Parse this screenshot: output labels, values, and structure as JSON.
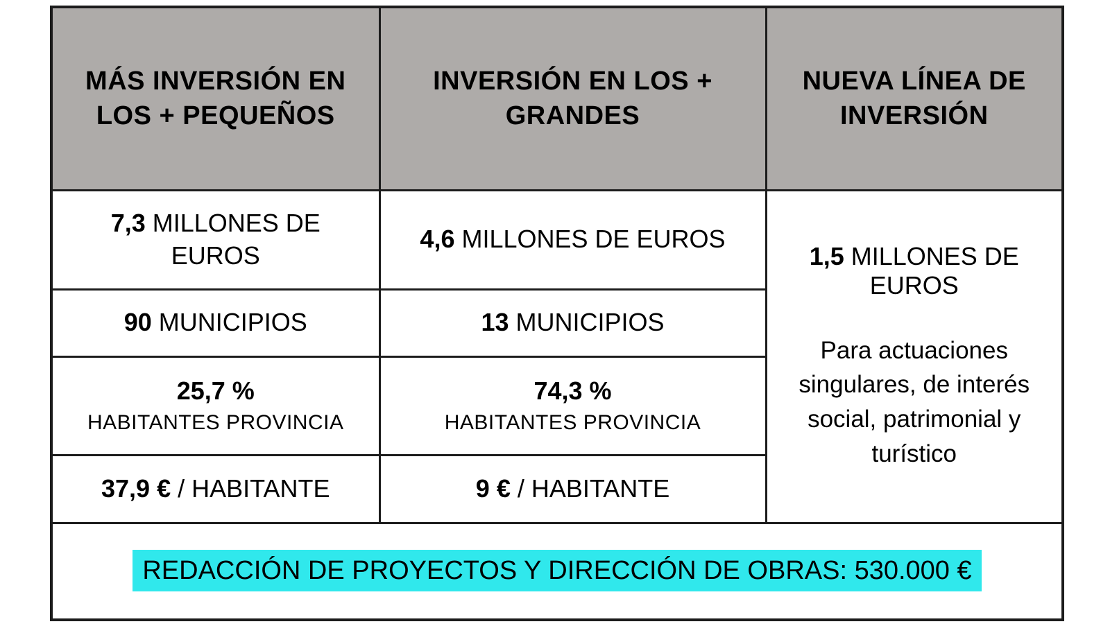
{
  "table": {
    "headers": [
      {
        "label": "MÁS INVERSIÓN EN LOS + PEQUEÑOS"
      },
      {
        "label": "INVERSIÓN EN LOS + GRANDES"
      },
      {
        "label": "NUEVA LÍNEA DE INVERSIÓN"
      }
    ],
    "columns": [
      {
        "id": "mas-inversion-pequenos",
        "rows": [
          {
            "value": "7,3",
            "rest": " MILLONES DE EUROS"
          },
          {
            "value": "90",
            "rest": " MUNICIPIOS"
          },
          {
            "value": "25,7 %",
            "sub": "HABITANTES PROVINCIA"
          },
          {
            "value": "37,9 €",
            "rest": " / HABITANTE"
          }
        ]
      },
      {
        "id": "inversion-grandes",
        "rows": [
          {
            "value": "4,6",
            "rest": " MILLONES DE EUROS"
          },
          {
            "value": "13",
            "rest": " MUNICIPIOS"
          },
          {
            "value": "74,3 %",
            "sub": "HABITANTES PROVINCIA"
          },
          {
            "value": "9 €",
            "rest": " / HABITANTE"
          }
        ]
      }
    ],
    "nueva_linea": {
      "value": "1,5",
      "rest": " MILLONES DE EUROS",
      "description": "Para actuaciones singulares, de interés social, patrimonial y turístico"
    },
    "footer": {
      "text": "REDACCIÓN DE PROYECTOS Y DIRECCIÓN DE OBRAS: 530.000 €"
    },
    "colors": {
      "header_bg": "#aeaba9",
      "highlight_bg": "#30e8ec",
      "border": "#1c1c1c",
      "text": "#000000"
    }
  },
  "chart_data": {
    "type": "table",
    "columns": [
      "MÁS INVERSIÓN EN LOS + PEQUEÑOS",
      "INVERSIÓN EN LOS + GRANDES",
      "NUEVA LÍNEA DE INVERSIÓN"
    ],
    "rows": [
      [
        "7,3 MILLONES DE EUROS",
        "4,6 MILLONES DE EUROS",
        "1,5 MILLONES DE EUROS"
      ],
      [
        "90 MUNICIPIOS",
        "13 MUNICIPIOS",
        "Para actuaciones singulares, de interés social, patrimonial y turístico"
      ],
      [
        "25,7 % HABITANTES PROVINCIA",
        "74,3 % HABITANTES PROVINCIA",
        ""
      ],
      [
        "37,9 € / HABITANTE",
        "9 € / HABITANTE",
        ""
      ]
    ],
    "footer": "REDACCIÓN DE PROYECTOS Y DIRECCIÓN DE OBRAS: 530.000 €",
    "notes": {
      "merged_third_column": true,
      "footer_highlighted": true
    }
  }
}
